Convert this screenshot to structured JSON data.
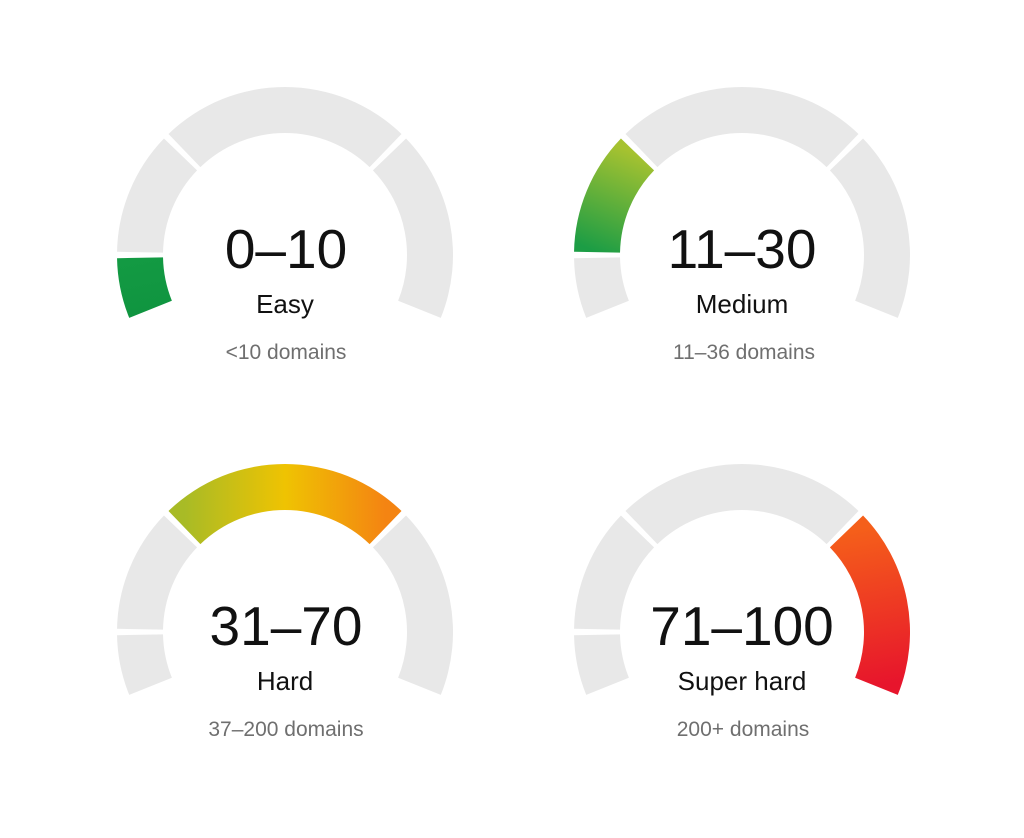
{
  "colors": {
    "track": "#e8e8e8",
    "separator": "#ffffff",
    "range_text": "#111111",
    "label_text": "#111111",
    "domains_text": "#6f6f6f"
  },
  "gauges": [
    {
      "range": "0–10",
      "label": "Easy",
      "domains": "<10 domains",
      "highlight_segment": 0,
      "gradient": [
        "#109540",
        "#139a43"
      ]
    },
    {
      "range": "11–30",
      "label": "Medium",
      "domains": "11–36 domains",
      "highlight_segment": 1,
      "gradient": [
        "#1c9d45",
        "#a6c230"
      ]
    },
    {
      "range": "31–70",
      "label": "Hard",
      "domains": "37–200 domains",
      "highlight_segment": 2,
      "gradient": [
        "#a8bb26",
        "#efc302",
        "#f48412"
      ]
    },
    {
      "range": "71–100",
      "label": "Super hard",
      "domains": "200+ domains",
      "highlight_segment": 3,
      "gradient": [
        "#f55f1a",
        "#e7152c"
      ]
    }
  ]
}
